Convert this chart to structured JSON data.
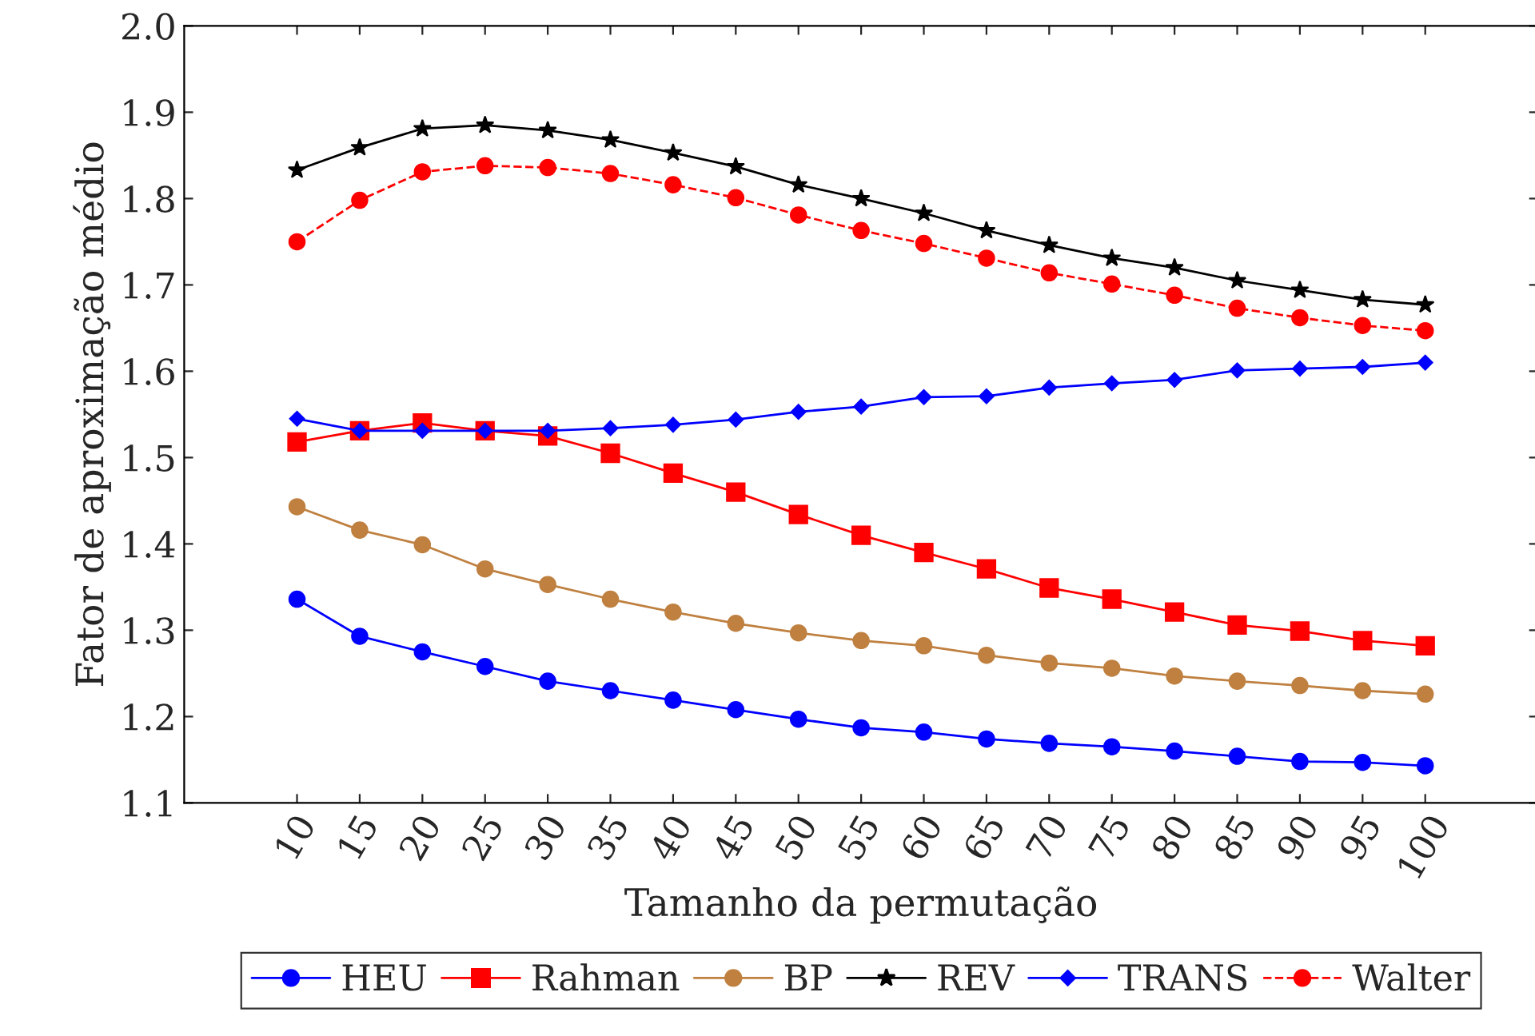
{
  "chart_data": {
    "type": "line",
    "xlabel": "Tamanho da permutação",
    "ylabel": "Fator de aproximação médio",
    "x": [
      10,
      15,
      20,
      25,
      30,
      35,
      40,
      45,
      50,
      55,
      60,
      65,
      70,
      75,
      80,
      85,
      90,
      95,
      100
    ],
    "xlim": [
      1,
      109
    ],
    "xticks": [
      10,
      15,
      20,
      25,
      30,
      35,
      40,
      45,
      50,
      55,
      60,
      65,
      70,
      75,
      80,
      85,
      90,
      95,
      100
    ],
    "ylim": [
      1.1,
      2.0
    ],
    "yticks": [
      {
        "value": 1.1,
        "label": "1.1"
      },
      {
        "value": 1.2,
        "label": "1.2"
      },
      {
        "value": 1.3,
        "label": "1.3"
      },
      {
        "value": 1.4,
        "label": "1.4"
      },
      {
        "value": 1.5,
        "label": "1.5"
      },
      {
        "value": 1.6,
        "label": "1.6"
      },
      {
        "value": 1.7,
        "label": "1.7"
      },
      {
        "value": 1.8,
        "label": "1.8"
      },
      {
        "value": 1.9,
        "label": "1.9"
      },
      {
        "value": 2.0,
        "label": "2.0"
      }
    ],
    "grid": false,
    "legend": "bottom",
    "series": [
      {
        "name": "HEU",
        "color": "#0000ff",
        "marker": "circle",
        "line_style": "solid",
        "values": [
          1.336,
          1.293,
          1.275,
          1.258,
          1.241,
          1.23,
          1.219,
          1.208,
          1.197,
          1.187,
          1.182,
          1.174,
          1.169,
          1.165,
          1.16,
          1.154,
          1.148,
          1.147,
          1.143
        ]
      },
      {
        "name": "Rahman",
        "color": "#ff0000",
        "marker": "square",
        "line_style": "solid",
        "values": [
          1.518,
          1.531,
          1.54,
          1.531,
          1.525,
          1.505,
          1.482,
          1.46,
          1.434,
          1.41,
          1.39,
          1.371,
          1.349,
          1.336,
          1.321,
          1.306,
          1.299,
          1.288,
          1.282
        ]
      },
      {
        "name": "BP",
        "color": "#bf8040",
        "marker": "circle",
        "line_style": "solid",
        "values": [
          1.443,
          1.416,
          1.399,
          1.371,
          1.353,
          1.336,
          1.321,
          1.308,
          1.297,
          1.288,
          1.282,
          1.271,
          1.262,
          1.256,
          1.247,
          1.241,
          1.236,
          1.23,
          1.226
        ]
      },
      {
        "name": "REV",
        "color": "#000000",
        "marker": "star",
        "line_style": "solid",
        "values": [
          1.833,
          1.859,
          1.881,
          1.885,
          1.879,
          1.868,
          1.853,
          1.837,
          1.816,
          1.8,
          1.783,
          1.763,
          1.746,
          1.731,
          1.72,
          1.705,
          1.694,
          1.683,
          1.677
        ]
      },
      {
        "name": "TRANS",
        "color": "#0000ff",
        "marker": "diamond",
        "line_style": "solid",
        "values": [
          1.545,
          1.531,
          1.531,
          1.531,
          1.531,
          1.534,
          1.538,
          1.544,
          1.553,
          1.559,
          1.57,
          1.571,
          1.581,
          1.586,
          1.59,
          1.601,
          1.603,
          1.605,
          1.61
        ]
      },
      {
        "name": "Walter",
        "color": "#ff0000",
        "marker": "circle",
        "line_style": "dashed",
        "values": [
          1.75,
          1.798,
          1.831,
          1.838,
          1.836,
          1.829,
          1.816,
          1.801,
          1.781,
          1.763,
          1.748,
          1.731,
          1.714,
          1.701,
          1.688,
          1.673,
          1.662,
          1.653,
          1.647
        ]
      }
    ]
  }
}
